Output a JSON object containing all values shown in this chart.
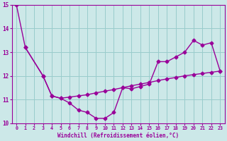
{
  "line1_x": [
    0,
    1,
    3,
    4,
    5,
    6,
    7,
    8,
    9,
    10,
    11,
    12,
    13,
    14,
    15,
    16,
    17,
    18,
    19,
    20,
    21,
    22,
    23
  ],
  "line1_y": [
    15.0,
    13.2,
    12.0,
    11.15,
    11.05,
    10.85,
    10.55,
    10.45,
    10.2,
    10.2,
    10.45,
    11.5,
    11.45,
    11.55,
    11.65,
    12.6,
    12.6,
    12.8,
    13.0,
    13.5,
    13.3,
    13.4,
    12.2
  ],
  "line2_x": [
    1,
    3,
    4,
    5,
    6,
    7,
    8,
    9,
    10,
    11,
    12,
    13,
    14,
    15,
    16,
    17,
    18,
    19,
    20,
    21,
    22,
    23
  ],
  "line2_y": [
    13.2,
    12.0,
    11.15,
    11.05,
    11.1,
    11.15,
    11.2,
    11.28,
    11.35,
    11.42,
    11.5,
    11.58,
    11.65,
    11.72,
    11.8,
    11.87,
    11.93,
    12.0,
    12.05,
    12.1,
    12.15,
    12.2
  ],
  "color": "#990099",
  "bg_color": "#cce8e8",
  "grid_color": "#99cccc",
  "xlabel": "Windchill (Refroidissement éolien,°C)",
  "xlim": [
    -0.5,
    23.5
  ],
  "ylim": [
    10,
    15
  ],
  "yticks": [
    10,
    11,
    12,
    13,
    14,
    15
  ],
  "xticks": [
    0,
    1,
    2,
    3,
    4,
    5,
    6,
    7,
    8,
    9,
    10,
    11,
    12,
    13,
    14,
    15,
    16,
    17,
    18,
    19,
    20,
    21,
    22,
    23
  ],
  "marker": "D",
  "markersize": 2.5,
  "linewidth": 1.0
}
